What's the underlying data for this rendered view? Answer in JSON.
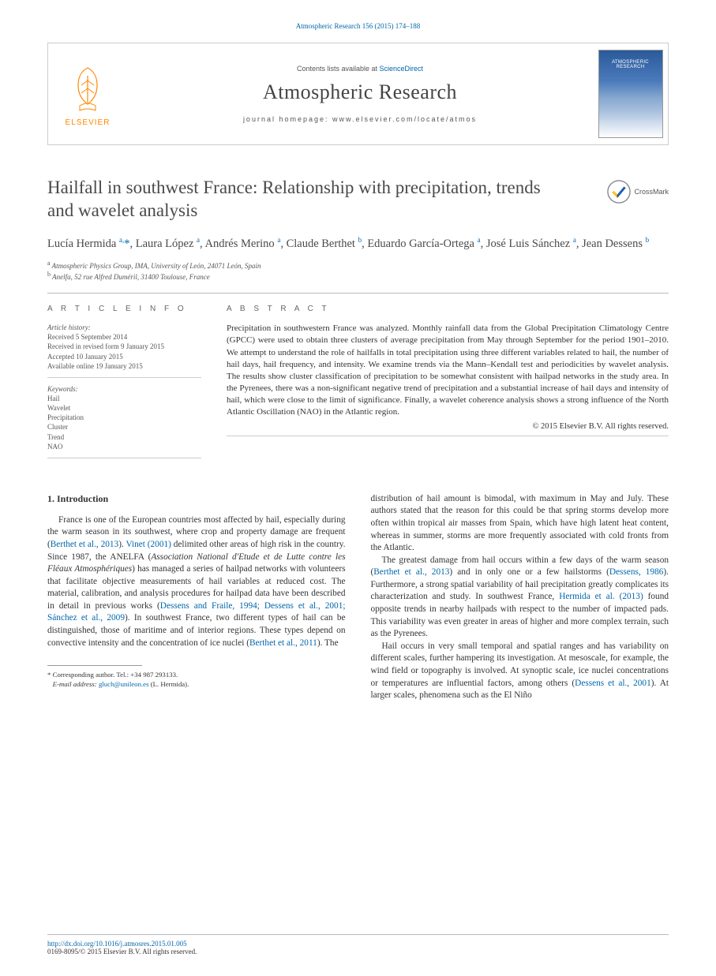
{
  "header_citation": "Atmospheric Research 156 (2015) 174–188",
  "masthead": {
    "contents_prefix": "Contents lists available at ",
    "contents_link": "ScienceDirect",
    "journal_name": "Atmospheric Research",
    "homepage_label": "journal homepage: ",
    "homepage_url": "www.elsevier.com/locate/atmos",
    "publisher_name": "ELSEVIER",
    "cover_title": "ATMOSPHERIC RESEARCH"
  },
  "crossmark_label": "CrossMark",
  "title": "Hailfall in southwest France: Relationship with precipitation, trends and wavelet analysis",
  "authors_html": "Lucía Hermida <sup>a,</sup><span class='star'>*</span>, Laura López <sup>a</sup>, Andrés Merino <sup>a</sup>, Claude Berthet <sup>b</sup>, Eduardo García-Ortega <sup>a</sup>, José Luis Sánchez <sup>a</sup>, Jean Dessens <sup>b</sup>",
  "affiliations": {
    "a": "Atmospheric Physics Group, IMA, University of León, 24071 León, Spain",
    "b": "Anelfa, 52 rue Alfred Duméril, 31400 Toulouse, France"
  },
  "article_info": {
    "heading": "A R T I C L E   I N F O",
    "history_label": "Article history:",
    "received": "Received 5 September 2014",
    "revised": "Received in revised form 9 January 2015",
    "accepted": "Accepted 10 January 2015",
    "online": "Available online 19 January 2015",
    "keywords_label": "Keywords:",
    "keywords": [
      "Hail",
      "Wavelet",
      "Precipitation",
      "Cluster",
      "Trend",
      "NAO"
    ]
  },
  "abstract": {
    "heading": "A B S T R A C T",
    "text": "Precipitation in southwestern France was analyzed. Monthly rainfall data from the Global Precipitation Climatology Centre (GPCC) were used to obtain three clusters of average precipitation from May through September for the period 1901–2010. We attempt to understand the role of hailfalls in total precipitation using three different variables related to hail, the number of hail days, hail frequency, and intensity. We examine trends via the Mann–Kendall test and periodicities by wavelet analysis. The results show cluster classification of precipitation to be somewhat consistent with hailpad networks in the study area. In the Pyrenees, there was a non-significant negative trend of precipitation and a substantial increase of hail days and intensity of hail, which were close to the limit of significance. Finally, a wavelet coherence analysis shows a strong influence of the North Atlantic Oscillation (NAO) in the Atlantic region.",
    "copyright": "© 2015 Elsevier B.V. All rights reserved."
  },
  "section1_title": "1. Introduction",
  "body": {
    "left_p1_a": "France is one of the European countries most affected by hail, especially during the warm season in its southwest, where crop and property damage are frequent (",
    "left_p1_ref1": "Berthet et al., 2013",
    "left_p1_b": "). ",
    "left_p1_ref2": "Vinet (2001)",
    "left_p1_c": " delimited other areas of high risk in the country. Since 1987, the ANELFA (",
    "left_p1_em": "Association National d'Etude et de Lutte contre les Fléaux Atmosphériques",
    "left_p1_d": ") has managed a series of hailpad networks with volunteers that facilitate objective measurements of hail variables at reduced cost. The material, calibration, and analysis procedures for hailpad data have been described in detail in previous works (",
    "left_p1_ref3": "Dessens and Fraile, 1994; Dessens et al., 2001; Sánchez et al., 2009",
    "left_p1_e": "). In southwest France, two different types of hail can be distinguished, those of maritime and of interior regions. These types depend on convective intensity and the concentration of ice nuclei (",
    "left_p1_ref4": "Berthet et al., 2011",
    "left_p1_f": "). The",
    "right_p1": "distribution of hail amount is bimodal, with maximum in May and July. These authors stated that the reason for this could be that spring storms develop more often within tropical air masses from Spain, which have high latent heat content, whereas in summer, storms are more frequently associated with cold fronts from the Atlantic.",
    "right_p2_a": "The greatest damage from hail occurs within a few days of the warm season (",
    "right_p2_ref1": "Berthet et al., 2013",
    "right_p2_b": ") and in only one or a few hailstorms (",
    "right_p2_ref2": "Dessens, 1986",
    "right_p2_c": "). Furthermore, a strong spatial variability of hail precipitation greatly complicates its characterization and study. In southwest France, ",
    "right_p2_ref3": "Hermida et al. (2013)",
    "right_p2_d": " found opposite trends in nearby hailpads with respect to the number of impacted pads. This variability was even greater in areas of higher and more complex terrain, such as the Pyrenees.",
    "right_p3_a": "Hail occurs in very small temporal and spatial ranges and has variability on different scales, further hampering its investigation. At mesoscale, for example, the wind field or topography is involved. At synoptic scale, ice nuclei concentrations or temperatures are influential factors, among others (",
    "right_p3_ref1": "Dessens et al., 2001",
    "right_p3_b": "). At larger scales, phenomena such as the El Niño"
  },
  "footnotes": {
    "corr_label": "Corresponding author. Tel.: +34 987 293133.",
    "email_label": "E-mail address: ",
    "email": "gluch@unileon.es",
    "email_who": " (L. Hermida)."
  },
  "bottom": {
    "doi": "http://dx.doi.org/10.1016/j.atmosres.2015.01.005",
    "issn_line": "0169-8095/© 2015 Elsevier B.V. All rights reserved."
  },
  "colors": {
    "link": "#0066aa",
    "elsevier_orange": "#ff8800",
    "text": "#333333",
    "muted": "#555555",
    "rule": "#bbbbbb"
  }
}
